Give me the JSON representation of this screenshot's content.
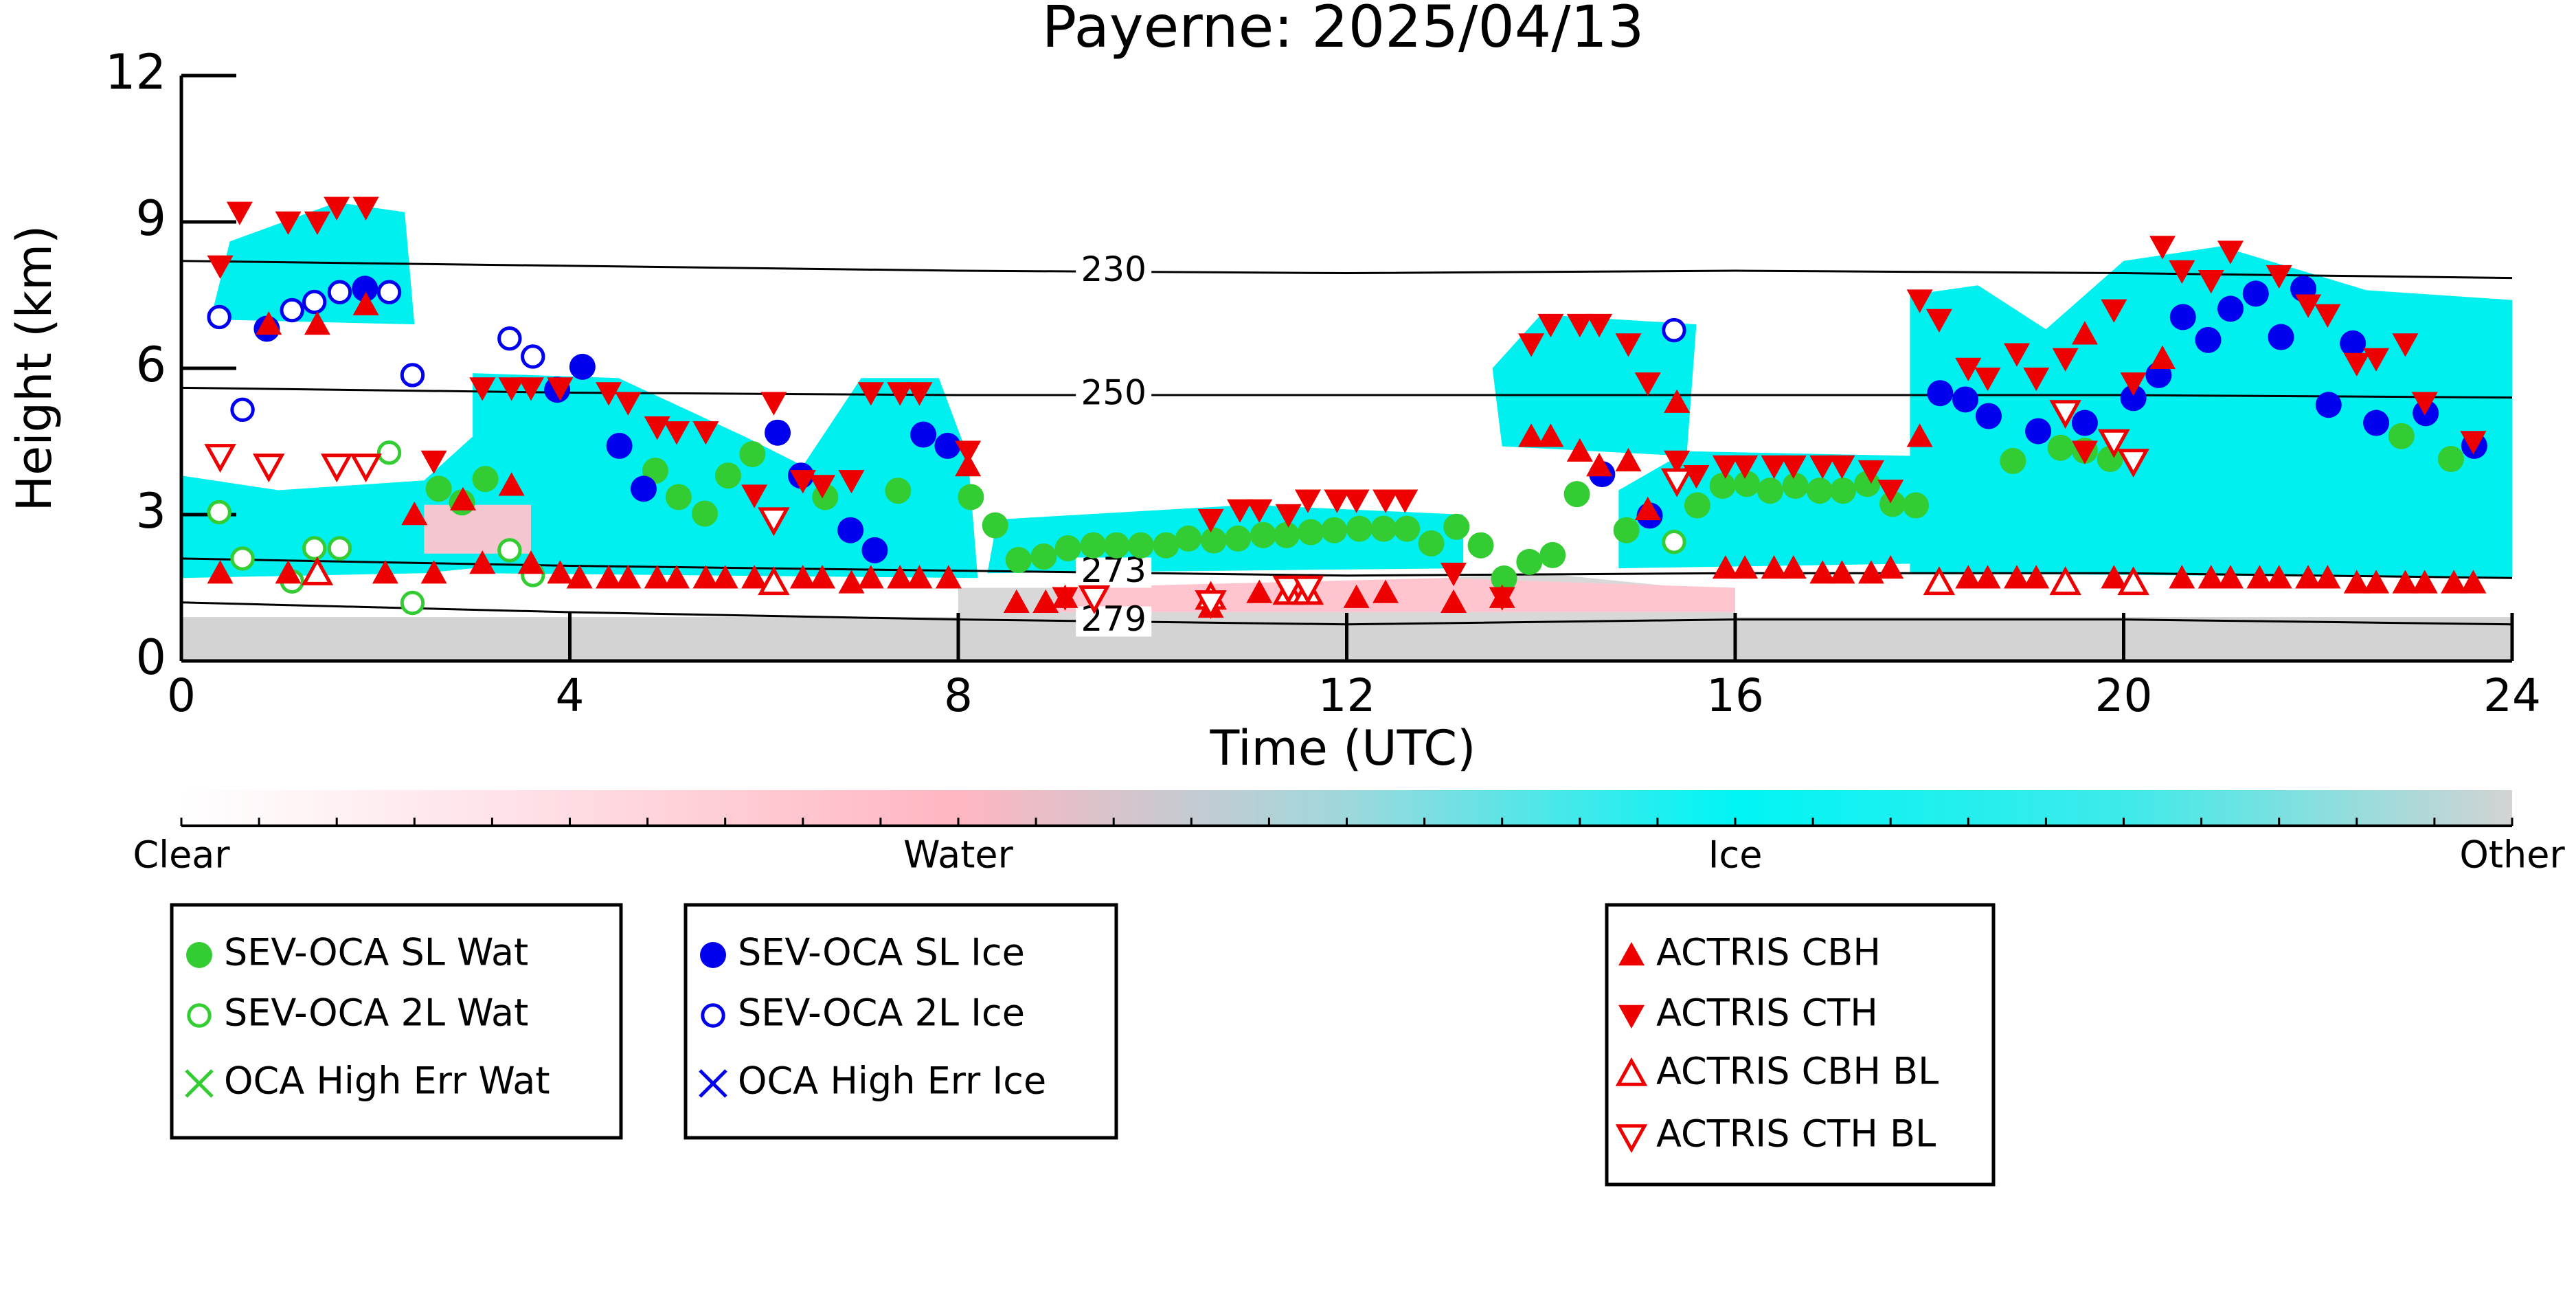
{
  "chart_data": {
    "type": "scatter",
    "title": "Payerne: 2025/04/13",
    "xlabel": "Time (UTC)",
    "ylabel": "Height (km)",
    "xlim": [
      0,
      24
    ],
    "ylim": [
      0,
      12
    ],
    "xticks": [
      0,
      4,
      8,
      12,
      16,
      20,
      24
    ],
    "yticks": [
      0,
      3,
      6,
      9,
      12
    ],
    "series": [
      {
        "name": "SEV-OCA SL Wat",
        "color": "#33cc33",
        "marker": "filled-circle",
        "x": [
          2.65,
          2.89,
          3.13,
          4.88,
          5.12,
          5.39,
          5.63,
          5.88,
          6.63,
          7.38,
          8.13,
          8.38,
          8.62,
          8.88,
          9.13,
          9.39,
          9.63,
          9.88,
          10.14,
          10.37,
          10.63,
          10.88,
          11.14,
          11.38,
          11.63,
          11.87,
          12.13,
          12.38,
          12.62,
          12.87,
          13.13,
          13.38,
          13.62,
          13.88,
          14.12,
          14.37,
          14.88,
          15.61,
          15.87,
          16.12,
          16.36,
          16.62,
          16.87,
          17.11,
          17.36,
          17.62,
          17.86,
          18.86,
          19.35,
          19.6,
          19.86,
          22.86,
          23.37
        ],
        "values": [
          3.53,
          3.25,
          3.73,
          3.9,
          3.36,
          3.02,
          3.8,
          4.24,
          3.36,
          3.49,
          3.36,
          2.78,
          2.07,
          2.14,
          2.31,
          2.37,
          2.37,
          2.37,
          2.37,
          2.51,
          2.47,
          2.51,
          2.58,
          2.58,
          2.64,
          2.68,
          2.71,
          2.71,
          2.71,
          2.41,
          2.75,
          2.37,
          1.69,
          2.03,
          2.17,
          3.42,
          2.68,
          3.19,
          3.59,
          3.63,
          3.49,
          3.59,
          3.49,
          3.49,
          3.63,
          3.22,
          3.19,
          4.1,
          4.37,
          4.31,
          4.14,
          4.61,
          4.14
        ]
      },
      {
        "name": "SEV-OCA 2L Wat",
        "color": "#33cc33",
        "marker": "open-circle",
        "x": [
          0.39,
          0.63,
          1.14,
          1.37,
          1.63,
          2.14,
          2.38,
          3.38,
          3.62,
          15.37
        ],
        "values": [
          3.05,
          2.1,
          1.63,
          2.31,
          2.31,
          4.27,
          1.19,
          2.27,
          1.76,
          2.44
        ]
      },
      {
        "name": "OCA High Err Wat",
        "color": "#33cc33",
        "marker": "x",
        "x": [],
        "values": []
      },
      {
        "name": "SEV-OCA SL Ice",
        "color": "#0000ee",
        "marker": "filled-circle",
        "x": [
          0.88,
          1.89,
          3.87,
          4.13,
          4.51,
          4.76,
          6.14,
          6.38,
          6.89,
          7.14,
          7.64,
          7.89,
          14.63,
          15.12,
          18.11,
          18.37,
          18.61,
          19.12,
          19.6,
          20.1,
          20.36,
          20.61,
          20.87,
          21.1,
          21.36,
          21.62,
          21.85,
          22.11,
          22.36,
          22.6,
          23.11,
          23.61
        ],
        "values": [
          6.81,
          7.63,
          5.56,
          6.03,
          4.41,
          3.53,
          4.68,
          3.8,
          2.68,
          2.27,
          4.64,
          4.41,
          3.83,
          2.98,
          5.49,
          5.36,
          5.02,
          4.71,
          4.88,
          5.39,
          5.86,
          7.05,
          6.58,
          7.22,
          7.53,
          6.64,
          7.63,
          5.25,
          6.51,
          4.88,
          5.08,
          4.41
        ]
      },
      {
        "name": "SEV-OCA 2L Ice",
        "color": "#0000ee",
        "marker": "open-circle",
        "x": [
          0.39,
          0.63,
          1.14,
          1.37,
          1.63,
          2.14,
          2.38,
          3.38,
          3.62,
          15.37
        ],
        "values": [
          7.05,
          5.15,
          7.19,
          7.36,
          7.56,
          7.56,
          5.86,
          6.61,
          6.24,
          6.78
        ]
      },
      {
        "name": "OCA High Err Ice",
        "color": "#0000ee",
        "marker": "x",
        "x": [],
        "values": []
      },
      {
        "name": "ACTRIS CBH",
        "color": "#ee0000",
        "marker": "filled-triangle-up",
        "x": [
          0.4,
          0.9,
          1.1,
          1.4,
          1.9,
          2.1,
          2.4,
          2.6,
          2.9,
          3.1,
          3.4,
          3.6,
          3.9,
          4.1,
          4.4,
          4.6,
          4.9,
          5.1,
          5.4,
          5.6,
          5.9,
          6.4,
          6.6,
          6.9,
          7.1,
          7.4,
          7.6,
          7.9,
          8.1,
          8.6,
          8.9,
          9.1,
          10.6,
          11.1,
          12.1,
          12.4,
          13.1,
          13.6,
          13.9,
          14.1,
          14.4,
          14.6,
          14.9,
          15.1,
          15.4,
          15.9,
          16.1,
          16.4,
          16.6,
          16.9,
          17.1,
          17.4,
          17.6,
          17.9,
          18.4,
          18.6,
          18.9,
          19.1,
          19.6,
          19.9,
          20.4,
          20.6,
          20.9,
          21.1,
          21.4,
          21.6,
          21.9,
          22.1,
          22.4,
          22.6,
          22.9,
          23.1,
          23.4,
          23.6
        ],
        "values": [
          1.8,
          6.9,
          1.8,
          6.9,
          7.3,
          1.8,
          3.0,
          1.8,
          3.3,
          2.0,
          3.6,
          2.0,
          1.8,
          1.7,
          1.7,
          1.7,
          1.7,
          1.7,
          1.7,
          1.7,
          1.7,
          1.7,
          1.7,
          1.6,
          1.7,
          1.7,
          1.7,
          1.7,
          4.0,
          1.2,
          1.2,
          1.3,
          1.1,
          1.4,
          1.3,
          1.4,
          1.2,
          1.3,
          4.6,
          4.6,
          4.3,
          4.0,
          4.1,
          3.1,
          5.3,
          1.9,
          1.9,
          1.9,
          1.9,
          1.8,
          1.8,
          1.8,
          1.9,
          4.6,
          1.7,
          1.7,
          1.7,
          1.7,
          6.7,
          1.7,
          6.2,
          1.7,
          1.7,
          1.7,
          1.7,
          1.7,
          1.7,
          1.7,
          1.6,
          1.6,
          1.6,
          1.6,
          1.6,
          1.6
        ]
      },
      {
        "name": "ACTRIS CTH",
        "color": "#ee0000",
        "marker": "filled-triangle-down",
        "x": [
          0.4,
          0.6,
          1.1,
          1.4,
          1.6,
          1.9,
          2.6,
          3.1,
          3.4,
          3.6,
          3.9,
          4.4,
          4.6,
          4.9,
          5.1,
          5.4,
          5.9,
          6.1,
          6.4,
          6.6,
          6.9,
          7.1,
          7.4,
          7.6,
          8.1,
          9.1,
          9.4,
          10.6,
          10.9,
          11.1,
          11.4,
          11.6,
          11.9,
          12.1,
          12.4,
          12.6,
          13.1,
          13.6,
          13.9,
          14.1,
          14.4,
          14.6,
          14.9,
          15.1,
          15.4,
          15.6,
          15.9,
          16.1,
          16.4,
          16.6,
          16.9,
          17.1,
          17.4,
          17.6,
          17.9,
          18.1,
          18.4,
          18.6,
          18.9,
          19.1,
          19.4,
          19.6,
          19.9,
          20.1,
          20.4,
          20.6,
          20.9,
          21.1,
          21.6,
          21.9,
          22.1,
          22.4,
          22.6,
          22.9,
          23.1,
          23.6
        ],
        "values": [
          8.1,
          9.2,
          9.0,
          9.0,
          9.3,
          9.3,
          4.1,
          5.6,
          5.6,
          5.6,
          5.6,
          5.5,
          5.3,
          4.8,
          4.7,
          4.7,
          3.4,
          5.3,
          3.7,
          3.6,
          3.7,
          5.5,
          5.5,
          5.5,
          4.3,
          1.3,
          1.3,
          2.9,
          3.1,
          3.1,
          3.0,
          3.3,
          3.3,
          3.3,
          3.3,
          3.3,
          1.8,
          1.3,
          6.5,
          6.9,
          6.9,
          6.9,
          6.5,
          5.7,
          4.1,
          3.8,
          4.0,
          4.0,
          4.0,
          4.0,
          4.0,
          4.0,
          3.9,
          3.5,
          7.4,
          7.0,
          6.0,
          5.8,
          6.3,
          5.8,
          6.2,
          4.3,
          7.2,
          5.7,
          8.5,
          8.0,
          7.8,
          8.4,
          7.9,
          7.3,
          7.1,
          6.1,
          6.2,
          6.5,
          5.3,
          4.5
        ]
      },
      {
        "name": "ACTRIS CBH BL",
        "color": "#ee0000",
        "marker": "open-triangle-up",
        "x": [
          1.4,
          6.1,
          10.6,
          11.4,
          11.6,
          18.1,
          19.4,
          20.1
        ],
        "values": [
          1.8,
          1.6,
          1.3,
          1.4,
          1.4,
          1.6,
          1.6,
          1.6
        ]
      },
      {
        "name": "ACTRIS CTH BL",
        "color": "#ee0000",
        "marker": "open-triangle-down",
        "x": [
          0.4,
          0.9,
          1.6,
          1.9,
          6.1,
          9.4,
          10.6,
          11.4,
          11.6,
          15.4,
          19.4,
          19.9,
          20.1
        ],
        "values": [
          4.2,
          4.0,
          4.0,
          4.0,
          2.9,
          1.3,
          1.2,
          1.5,
          1.5,
          3.7,
          5.1,
          4.5,
          4.1
        ]
      }
    ],
    "contours": [
      {
        "level": 230,
        "x": [
          0,
          4,
          8,
          12,
          16,
          20,
          24
        ],
        "y": [
          8.2,
          8.1,
          8.0,
          7.95,
          8.0,
          7.95,
          7.85
        ]
      },
      {
        "level": 250,
        "x": [
          0,
          4,
          8,
          12,
          16,
          20,
          24
        ],
        "y": [
          5.6,
          5.5,
          5.45,
          5.45,
          5.45,
          5.45,
          5.4
        ]
      },
      {
        "level": 273,
        "x": [
          0,
          4,
          8,
          12,
          16,
          20,
          24
        ],
        "y": [
          2.1,
          1.95,
          1.85,
          1.75,
          1.8,
          1.8,
          1.7
        ]
      },
      {
        "level": 279,
        "x": [
          0,
          4,
          8,
          12,
          16,
          20,
          24
        ],
        "y": [
          1.2,
          1.0,
          0.85,
          0.75,
          0.85,
          0.85,
          0.75
        ]
      }
    ],
    "colorbar": {
      "labels": [
        "Clear",
        "Water",
        "Ice",
        "Other"
      ],
      "colors": [
        "#ffffff",
        "#ffdce3",
        "#ffb6c1",
        "#9ed8dc",
        "#00f5f5",
        "#3eeaea",
        "#d3d3d3"
      ]
    }
  }
}
